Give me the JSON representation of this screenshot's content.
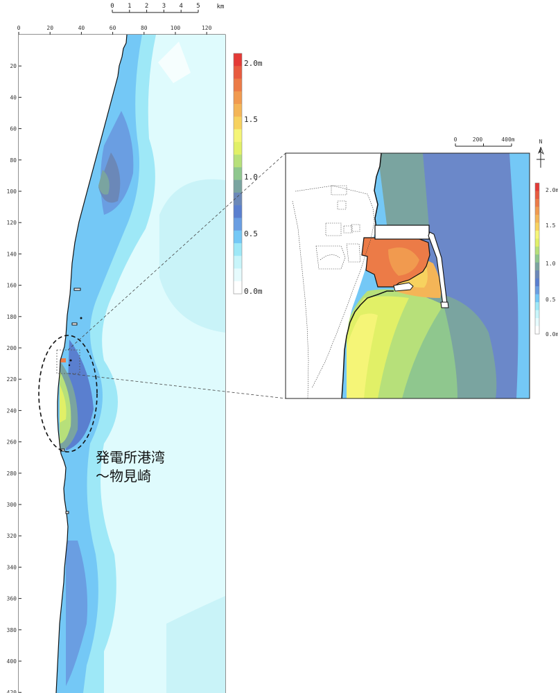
{
  "scalebar_main": {
    "labels": [
      "0",
      "1",
      "2",
      "3",
      "4",
      "5"
    ],
    "unit": "km"
  },
  "main_axes": {
    "x_ticks": [
      "0",
      "20",
      "40",
      "60",
      "80",
      "100",
      "120"
    ],
    "y_ticks": [
      "20",
      "40",
      "60",
      "80",
      "100",
      "120",
      "140",
      "160",
      "180",
      "200",
      "220",
      "240",
      "260",
      "280",
      "300",
      "320",
      "340",
      "360",
      "380",
      "400",
      "420"
    ]
  },
  "legend_main": {
    "labels": [
      "2.0m",
      "1.5",
      "1.0",
      "0.5",
      "0.0m"
    ]
  },
  "inset": {
    "scalebar_labels": [
      "0",
      "200",
      "400m"
    ],
    "north_label": "N",
    "legend_labels": [
      "2.0m",
      "1.5",
      "1.0",
      "0.5",
      "0.0m"
    ]
  },
  "annotation": {
    "line1": "発電所港湾",
    "line2": "～物見崎"
  },
  "colors": {
    "scale": [
      "#ffffff",
      "#e6fbfd",
      "#c8f5fa",
      "#9ee8f7",
      "#74c8f6",
      "#6a9ee2",
      "#5a7fcf",
      "#6b88b8",
      "#7aa4a0",
      "#8fc78e",
      "#b7e07a",
      "#e1f067",
      "#f5f577",
      "#f7d25f",
      "#f4b557",
      "#f19a4f",
      "#ec7b47",
      "#e85b3f",
      "#e43a36"
    ]
  }
}
